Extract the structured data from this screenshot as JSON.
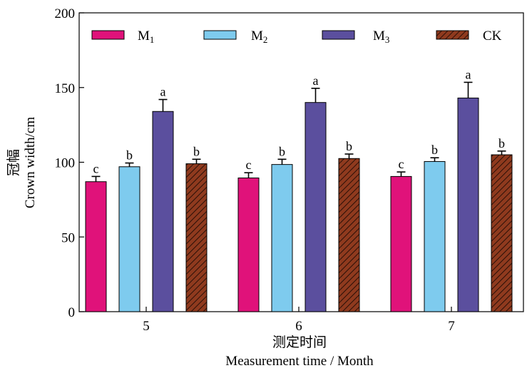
{
  "chart_data": {
    "type": "bar",
    "categories": [
      "5",
      "6",
      "7"
    ],
    "ylim": [
      0,
      200
    ],
    "yticks": [
      0,
      50,
      100,
      150,
      200
    ],
    "ylabel_cn": "冠幅",
    "ylabel": "Crown width/cm",
    "xlabel_cn": "测定时间",
    "xlabel": "Measurement time / Month",
    "legend_position": "top",
    "series": [
      {
        "name": "M",
        "subscript": "1",
        "color": "#e0127a",
        "pattern": "solid",
        "values": [
          87,
          89.5,
          90.5
        ],
        "errors": [
          3.5,
          3.5,
          3
        ],
        "letters": [
          "c",
          "c",
          "c"
        ]
      },
      {
        "name": "M",
        "subscript": "2",
        "color": "#7ecbee",
        "pattern": "solid",
        "values": [
          97,
          98.5,
          100.5
        ],
        "errors": [
          2.5,
          3.5,
          2.5
        ],
        "letters": [
          "b",
          "b",
          "b"
        ]
      },
      {
        "name": "M",
        "subscript": "3",
        "color": "#5b4f9e",
        "pattern": "solid",
        "values": [
          134,
          140,
          143
        ],
        "errors": [
          8,
          9.5,
          10.5
        ],
        "letters": [
          "a",
          "a",
          "a"
        ]
      },
      {
        "name": "CK",
        "subscript": "",
        "color": "#8f3a1e",
        "pattern": "hatch",
        "values": [
          99,
          102.5,
          105
        ],
        "errors": [
          3,
          3,
          2.5
        ],
        "letters": [
          "b",
          "b",
          "b"
        ]
      }
    ]
  }
}
